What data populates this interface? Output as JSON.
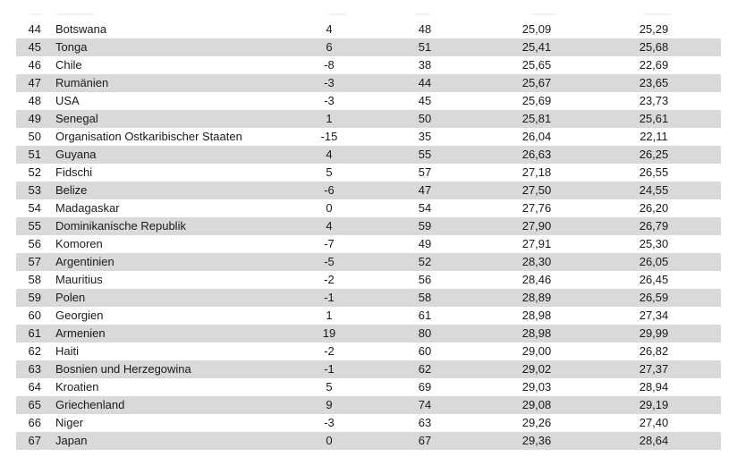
{
  "colors": {
    "row_shaded": "#d9d9d9",
    "text": "#1a1a1a",
    "background": "#ffffff"
  },
  "table": {
    "rows": [
      {
        "rank": "44",
        "country": "Botswana",
        "col3": "4",
        "col4": "48",
        "col5": "25,09",
        "col6": "25,29"
      },
      {
        "rank": "45",
        "country": "Tonga",
        "col3": "6",
        "col4": "51",
        "col5": "25,41",
        "col6": "25,68"
      },
      {
        "rank": "46",
        "country": "Chile",
        "col3": "-8",
        "col4": "38",
        "col5": "25,65",
        "col6": "22,69"
      },
      {
        "rank": "47",
        "country": "Rumänien",
        "col3": "-3",
        "col4": "44",
        "col5": "25,67",
        "col6": "23,65"
      },
      {
        "rank": "48",
        "country": "USA",
        "col3": "-3",
        "col4": "45",
        "col5": "25,69",
        "col6": "23,73"
      },
      {
        "rank": "49",
        "country": "Senegal",
        "col3": "1",
        "col4": "50",
        "col5": "25,81",
        "col6": "25,61"
      },
      {
        "rank": "50",
        "country": "Organisation Ostkaribischer Staaten",
        "col3": "-15",
        "col4": "35",
        "col5": "26,04",
        "col6": "22,11"
      },
      {
        "rank": "51",
        "country": "Guyana",
        "col3": "4",
        "col4": "55",
        "col5": "26,63",
        "col6": "26,25"
      },
      {
        "rank": "52",
        "country": "Fidschi",
        "col3": "5",
        "col4": "57",
        "col5": "27,18",
        "col6": "26,55"
      },
      {
        "rank": "53",
        "country": "Belize",
        "col3": "-6",
        "col4": "47",
        "col5": "27,50",
        "col6": "24,55"
      },
      {
        "rank": "54",
        "country": "Madagaskar",
        "col3": "0",
        "col4": "54",
        "col5": "27,76",
        "col6": "26,20"
      },
      {
        "rank": "55",
        "country": "Dominikanische Republik",
        "col3": "4",
        "col4": "59",
        "col5": "27,90",
        "col6": "26,79"
      },
      {
        "rank": "56",
        "country": "Komoren",
        "col3": "-7",
        "col4": "49",
        "col5": "27,91",
        "col6": "25,30"
      },
      {
        "rank": "57",
        "country": "Argentinien",
        "col3": "-5",
        "col4": "52",
        "col5": "28,30",
        "col6": "26,05"
      },
      {
        "rank": "58",
        "country": "Mauritius",
        "col3": "-2",
        "col4": "56",
        "col5": "28,46",
        "col6": "26,45"
      },
      {
        "rank": "59",
        "country": "Polen",
        "col3": "-1",
        "col4": "58",
        "col5": "28,89",
        "col6": "26,59"
      },
      {
        "rank": "60",
        "country": "Georgien",
        "col3": "1",
        "col4": "61",
        "col5": "28,98",
        "col6": "27,34"
      },
      {
        "rank": "61",
        "country": "Armenien",
        "col3": "19",
        "col4": "80",
        "col5": "28,98",
        "col6": "29,99"
      },
      {
        "rank": "62",
        "country": "Haiti",
        "col3": "-2",
        "col4": "60",
        "col5": "29,00",
        "col6": "26,82"
      },
      {
        "rank": "63",
        "country": "Bosnien und Herzegowina",
        "col3": "-1",
        "col4": "62",
        "col5": "29,02",
        "col6": "27,37"
      },
      {
        "rank": "64",
        "country": "Kroatien",
        "col3": "5",
        "col4": "69",
        "col5": "29,03",
        "col6": "28,94"
      },
      {
        "rank": "65",
        "country": "Griechenland",
        "col3": "9",
        "col4": "74",
        "col5": "29,08",
        "col6": "29,19"
      },
      {
        "rank": "66",
        "country": "Niger",
        "col3": "-3",
        "col4": "63",
        "col5": "29,26",
        "col6": "27,40"
      },
      {
        "rank": "67",
        "country": "Japan",
        "col3": "0",
        "col4": "67",
        "col5": "29,36",
        "col6": "28,64"
      }
    ]
  }
}
